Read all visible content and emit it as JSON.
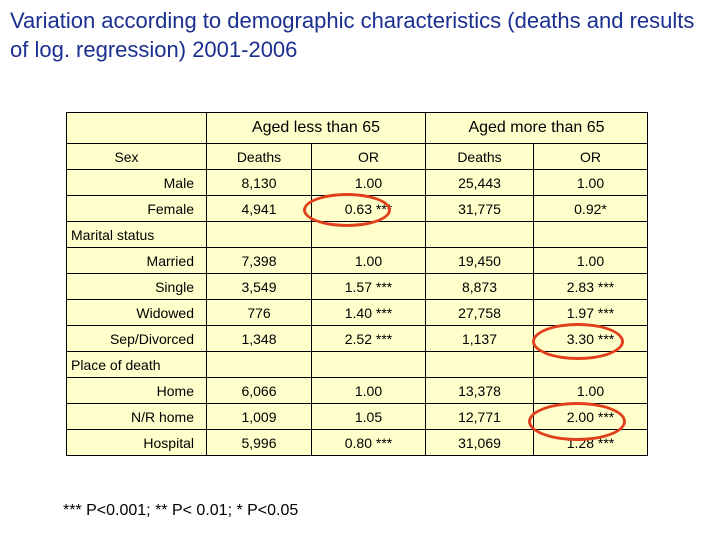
{
  "title": "Variation according to demographic characteristics (deaths and results of log. regression) 2001-2006",
  "table": {
    "group_headers": [
      "Aged less than 65",
      "Aged more than 65"
    ],
    "sub_header_label": "Sex",
    "sub_headers": [
      "Deaths",
      "OR",
      "Deaths",
      "OR"
    ],
    "sections": [
      {
        "name": "",
        "rows": [
          {
            "label": "Male",
            "cells": [
              "8,130",
              "1.00",
              "25,443",
              "1.00"
            ]
          },
          {
            "label": "Female",
            "cells": [
              "4,941",
              "0.63 ***",
              "31,775",
              "0.92*"
            ]
          }
        ]
      },
      {
        "name": "Marital status",
        "rows": [
          {
            "label": "Married",
            "cells": [
              "7,398",
              "1.00",
              "19,450",
              "1.00"
            ]
          },
          {
            "label": "Single",
            "cells": [
              "3,549",
              "1.57 ***",
              "8,873",
              "2.83 ***"
            ]
          },
          {
            "label": "Widowed",
            "cells": [
              "776",
              "1.40 ***",
              "27,758",
              "1.97 ***"
            ]
          },
          {
            "label": "Sep/Divorced",
            "cells": [
              "1,348",
              "2.52 ***",
              "1,137",
              "3.30 ***"
            ]
          }
        ]
      },
      {
        "name": "Place of death",
        "rows": [
          {
            "label": "Home",
            "cells": [
              "6,066",
              "1.00",
              "13,378",
              "1.00"
            ]
          },
          {
            "label": "N/R home",
            "cells": [
              "1,009",
              "1.05",
              "12,771",
              "2.00 ***"
            ]
          },
          {
            "label": "Hospital",
            "cells": [
              "5,996",
              "0.80 ***",
              "31,069",
              "1.28 ***"
            ]
          }
        ]
      }
    ]
  },
  "footnote": "*** P<0.001; ** P< 0.01; * P<0.05",
  "colors": {
    "title": "#1a2f8f",
    "table_fill": "#ffffcc",
    "highlight_oval": "#e0401c"
  }
}
